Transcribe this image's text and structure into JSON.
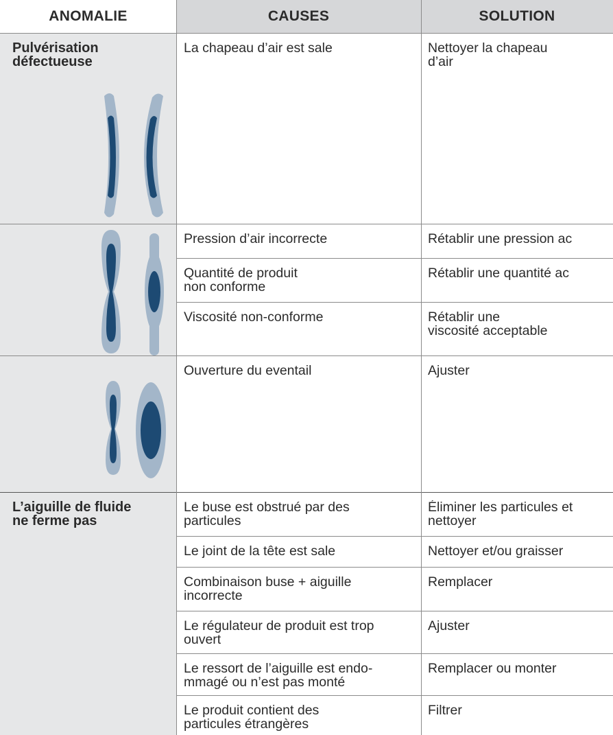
{
  "header": [
    "ANOMALIE",
    "CAUSES",
    "SOLUTION"
  ],
  "groups": [
    {
      "anomaly": [
        "Pulvérisation",
        "défectueuse"
      ],
      "rows": [
        {
          "cause": [
            "La chapeau d’air est sale"
          ],
          "solution": [
            "Nettoyer la chapeau",
            "d’air"
          ]
        }
      ]
    },
    {
      "rows": [
        {
          "cause": [
            "Pression d’air incorrecte"
          ],
          "solution": [
            "Rétablir une pression ac"
          ]
        },
        {
          "cause": [
            "Quantité de produit",
            "non conforme"
          ],
          "solution": [
            "Rétablir une quantité ac"
          ]
        },
        {
          "cause": [
            "Viscosité non-conforme"
          ],
          "solution": [
            "Rétablir une",
            "viscosité acceptable"
          ]
        }
      ]
    },
    {
      "rows": [
        {
          "cause": [
            "Ouverture du eventail"
          ],
          "solution": [
            "Ajuster"
          ]
        }
      ]
    },
    {
      "anomaly": [
        "L’aiguille de fluide",
        "ne ferme pas"
      ],
      "rows": [
        {
          "cause": [
            "Le buse est obstrué par des",
            "particules"
          ],
          "solution": [
            "Éliminer les particules et",
            "nettoyer"
          ]
        },
        {
          "cause": [
            "Le joint de la tête est sale"
          ],
          "solution": [
            "Nettoyer et/ou graisser"
          ]
        },
        {
          "cause": [
            "Combinaison buse + aiguille",
            "incorrecte"
          ],
          "solution": [
            "Remplacer"
          ]
        },
        {
          "cause": [
            "Le régulateur de produit est trop",
            "ouvert"
          ],
          "solution": [
            "Ajuster"
          ]
        },
        {
          "cause": [
            "Le ressort de l’aiguille est endo-",
            "mmagé ou n’est pas monté"
          ],
          "solution": [
            "Remplacer ou monter"
          ]
        },
        {
          "cause": [
            "Le produit contient des",
            "particules étrangères"
          ],
          "solution": [
            "Filtrer"
          ]
        }
      ]
    }
  ]
}
